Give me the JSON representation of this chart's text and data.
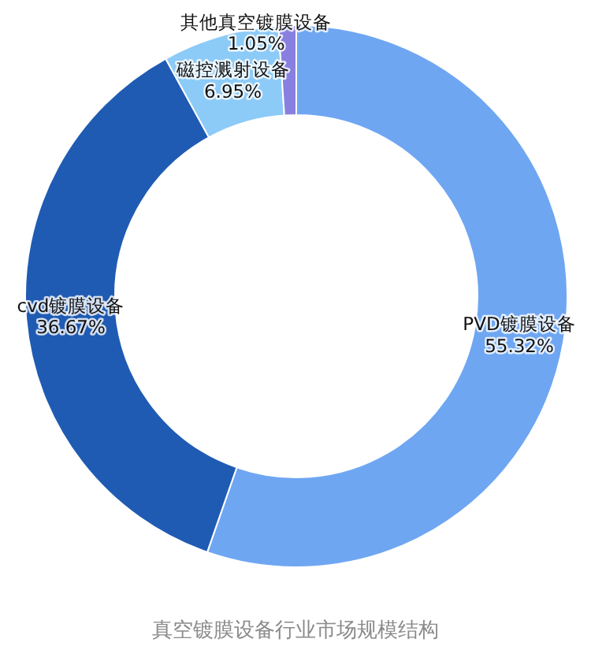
{
  "chart_data": {
    "type": "donut",
    "title": "真空镀膜设备行业市场规模结构",
    "categories": [
      "PVD镀膜设备",
      "cvd镀膜设备",
      "磁控溅射设备",
      "其他真空镀膜设备"
    ],
    "values": [
      55.32,
      36.67,
      6.95,
      1.05
    ],
    "value_labels": [
      "55.32%",
      "36.67%",
      "6.95%",
      "1.05%"
    ],
    "colors": [
      "#6ea6f2",
      "#1f5bb3",
      "#8ccaf8",
      "#8880e0"
    ],
    "legend": false
  }
}
